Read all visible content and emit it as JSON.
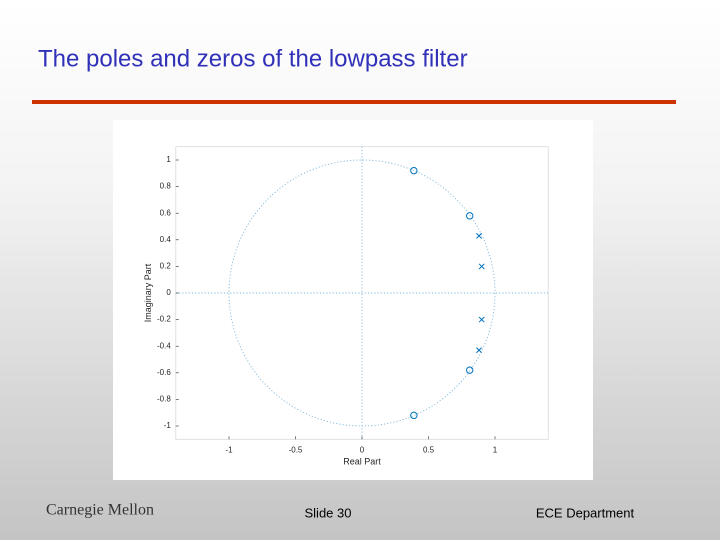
{
  "slide": {
    "title": "The poles and zeros of the lowpass filter",
    "logo": "Carnegie Mellon",
    "footer_center": "Slide 30",
    "footer_right": "ECE Department"
  },
  "chart_data": {
    "type": "scatter",
    "xlabel": "Real Part",
    "ylabel": "Imaginary Part",
    "xlim": [
      -1.4,
      1.4
    ],
    "ylim": [
      -1.1,
      1.1
    ],
    "xticks": [
      -1,
      -0.5,
      0,
      0.5,
      1
    ],
    "yticks": [
      -1,
      -0.8,
      -0.6,
      -0.4,
      -0.2,
      0,
      0.2,
      0.4,
      0.6,
      0.8,
      1
    ],
    "unit_circle": true,
    "series": [
      {
        "marker": "o",
        "color": "#0072bd",
        "x": [
          0.39,
          0.81,
          0.81,
          0.39
        ],
        "values": [
          0.92,
          0.58,
          -0.58,
          -0.92
        ]
      },
      {
        "marker": "x",
        "color": "#0072bd",
        "x": [
          0.88,
          0.9,
          0.9,
          0.88
        ],
        "values": [
          0.43,
          0.2,
          -0.2,
          -0.43
        ]
      }
    ]
  }
}
